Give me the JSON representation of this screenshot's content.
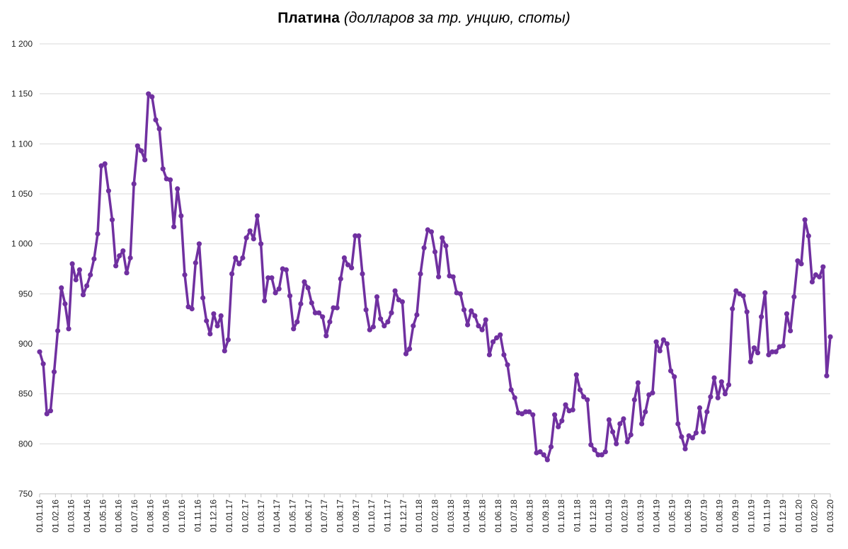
{
  "chart_data": {
    "type": "line",
    "title": "Платина",
    "subtitle": "(долларов за тр. унцию, споты)",
    "xlabel": "",
    "ylabel": "",
    "ylim": [
      750,
      1200
    ],
    "yticks": [
      750,
      800,
      850,
      900,
      950,
      1000,
      1050,
      1100,
      1150,
      1200
    ],
    "ytick_labels": [
      "750",
      "800",
      "850",
      "900",
      "950",
      "1 000",
      "1 050",
      "1 100",
      "1 150",
      "1 200"
    ],
    "xtick_labels": [
      "01.01.16",
      "01.02.16",
      "01.03.16",
      "01.04.16",
      "01.05.16",
      "01.06.16",
      "01.07.16",
      "01.08.16",
      "01.09.16",
      "01.10.16",
      "01.11.16",
      "01.12.16",
      "01.01.17",
      "01.02.17",
      "01.03.17",
      "01.04.17",
      "01.05.17",
      "01.06.17",
      "01.07.17",
      "01.08.17",
      "01.09.17",
      "01.10.17",
      "01.11.17",
      "01.12.17",
      "01.01.18",
      "01.02.18",
      "01.03.18",
      "01.04.18",
      "01.05.18",
      "01.06.18",
      "01.07.18",
      "01.08.18",
      "01.09.18",
      "01.10.18",
      "01.11.18",
      "01.12.18",
      "01.01.19",
      "01.02.19",
      "01.03.19",
      "01.04.19",
      "01.05.19",
      "01.06.19",
      "01.07.19",
      "01.08.19",
      "01.09.19",
      "01.10.19",
      "01.11.19",
      "01.12.19",
      "01.01.20",
      "01.02.20",
      "01.03.20"
    ],
    "grid": true,
    "color": "#7030A0",
    "series": [
      {
        "values": [
          892,
          880,
          830,
          833,
          872,
          913,
          956,
          940,
          915,
          980,
          964,
          974,
          949,
          958,
          969,
          985,
          1010,
          1078,
          1080,
          1053,
          1024,
          978,
          988,
          993,
          971,
          986,
          1060,
          1098,
          1093,
          1084,
          1150,
          1147,
          1124,
          1115,
          1075,
          1065,
          1064,
          1017,
          1055,
          1028,
          969,
          937,
          935,
          981,
          1000,
          946,
          923,
          910,
          930,
          918,
          928,
          893,
          904,
          970,
          986,
          980,
          986,
          1006,
          1013,
          1005,
          1028,
          1000,
          943,
          966,
          966,
          951,
          955,
          975,
          974,
          948,
          915,
          922,
          940,
          962,
          956,
          941,
          931,
          931,
          927,
          908,
          922,
          936,
          936,
          965,
          986,
          979,
          976,
          1008,
          1008,
          970,
          934,
          914,
          917,
          947,
          925,
          918,
          922,
          931,
          953,
          944,
          942,
          890,
          895,
          918,
          929,
          970,
          996,
          1014,
          1012,
          992,
          967,
          1006,
          998,
          968,
          967,
          951,
          950,
          934,
          919,
          933,
          928,
          918,
          914,
          924,
          889,
          902,
          906,
          909,
          889,
          879,
          854,
          846,
          831,
          830,
          832,
          832,
          829,
          791,
          792,
          789,
          784,
          797,
          829,
          817,
          823,
          839,
          833,
          834,
          869,
          854,
          847,
          844,
          799,
          794,
          789,
          789,
          792,
          824,
          812,
          800,
          820,
          825,
          802,
          809,
          844,
          861,
          820,
          832,
          849,
          851,
          902,
          893,
          904,
          900,
          873,
          867,
          820,
          807,
          795,
          808,
          806,
          811,
          836,
          812,
          832,
          847,
          866,
          846,
          862,
          850,
          859,
          935,
          953,
          950,
          948,
          932,
          882,
          896,
          891,
          927,
          951,
          889,
          892,
          892,
          897,
          898,
          930,
          913,
          947,
          983,
          980,
          1024,
          1008,
          962,
          969,
          967,
          977,
          868,
          907
        ]
      }
    ]
  }
}
